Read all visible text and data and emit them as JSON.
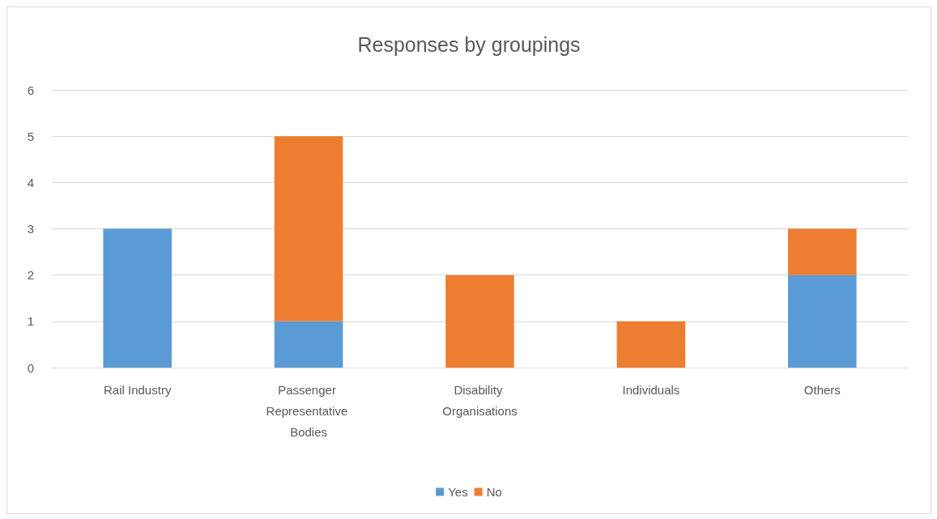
{
  "chart_data": {
    "type": "bar",
    "title": "Responses by groupings",
    "stacked": true,
    "categories": [
      "Rail Industry",
      "Passenger Representative Bodies",
      "Disability Organisations",
      "Individuals",
      "Others"
    ],
    "series": [
      {
        "name": "Yes",
        "color": "#5b9bd5",
        "values": [
          3,
          1,
          0,
          0,
          2
        ]
      },
      {
        "name": "No",
        "color": "#ed7d31",
        "values": [
          0,
          4,
          2,
          1,
          1
        ]
      }
    ],
    "ylim": [
      0,
      6
    ],
    "yticks": [
      0,
      1,
      2,
      3,
      4,
      5,
      6
    ],
    "grid": "y",
    "legend": "bottom"
  }
}
